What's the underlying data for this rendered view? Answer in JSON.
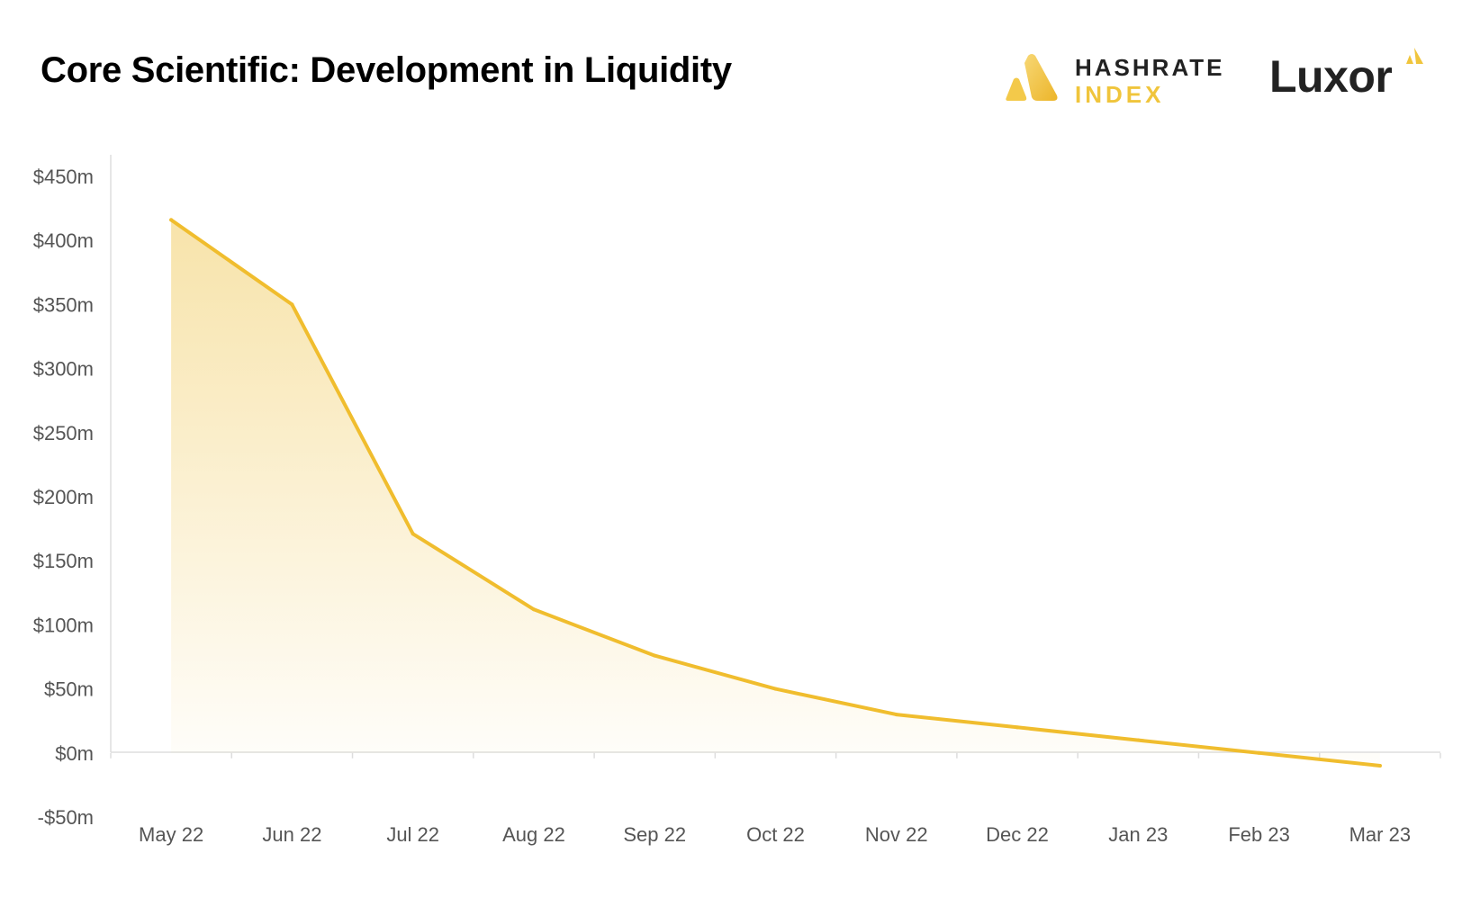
{
  "header": {
    "title": "Core Scientific: Development in Liquidity"
  },
  "logos": {
    "hashrate_line1": "HASHRATE",
    "hashrate_line2": "INDEX",
    "luxor": "Luxor"
  },
  "colors": {
    "line": "#f0bd2e",
    "fill_top": "#f7e2a6",
    "axis": "#dddddd",
    "accent": "#f0c53c"
  },
  "chart_data": {
    "type": "area",
    "title": "Core Scientific: Development in Liquidity",
    "xlabel": "",
    "ylabel": "",
    "categories": [
      "May 22",
      "Jun 22",
      "Jul 22",
      "Aug 22",
      "Sep 22",
      "Oct 22",
      "Nov 22",
      "Dec 22",
      "Jan 23",
      "Feb 23",
      "Mar 23"
    ],
    "series": [
      {
        "name": "Liquidity",
        "values": [
          416,
          350,
          171,
          112,
          76,
          50,
          30,
          20,
          10,
          0,
          -10
        ]
      }
    ],
    "ylim": [
      -50,
      450
    ],
    "yticks": [
      450,
      400,
      350,
      300,
      250,
      200,
      150,
      100,
      50,
      0,
      -50
    ],
    "ytick_labels": [
      "$450m",
      "$400m",
      "$350m",
      "$300m",
      "$250m",
      "$200m",
      "$150m",
      "$100m",
      "$50m",
      "$0m",
      "-$50m"
    ],
    "grid": false,
    "legend": "none"
  }
}
